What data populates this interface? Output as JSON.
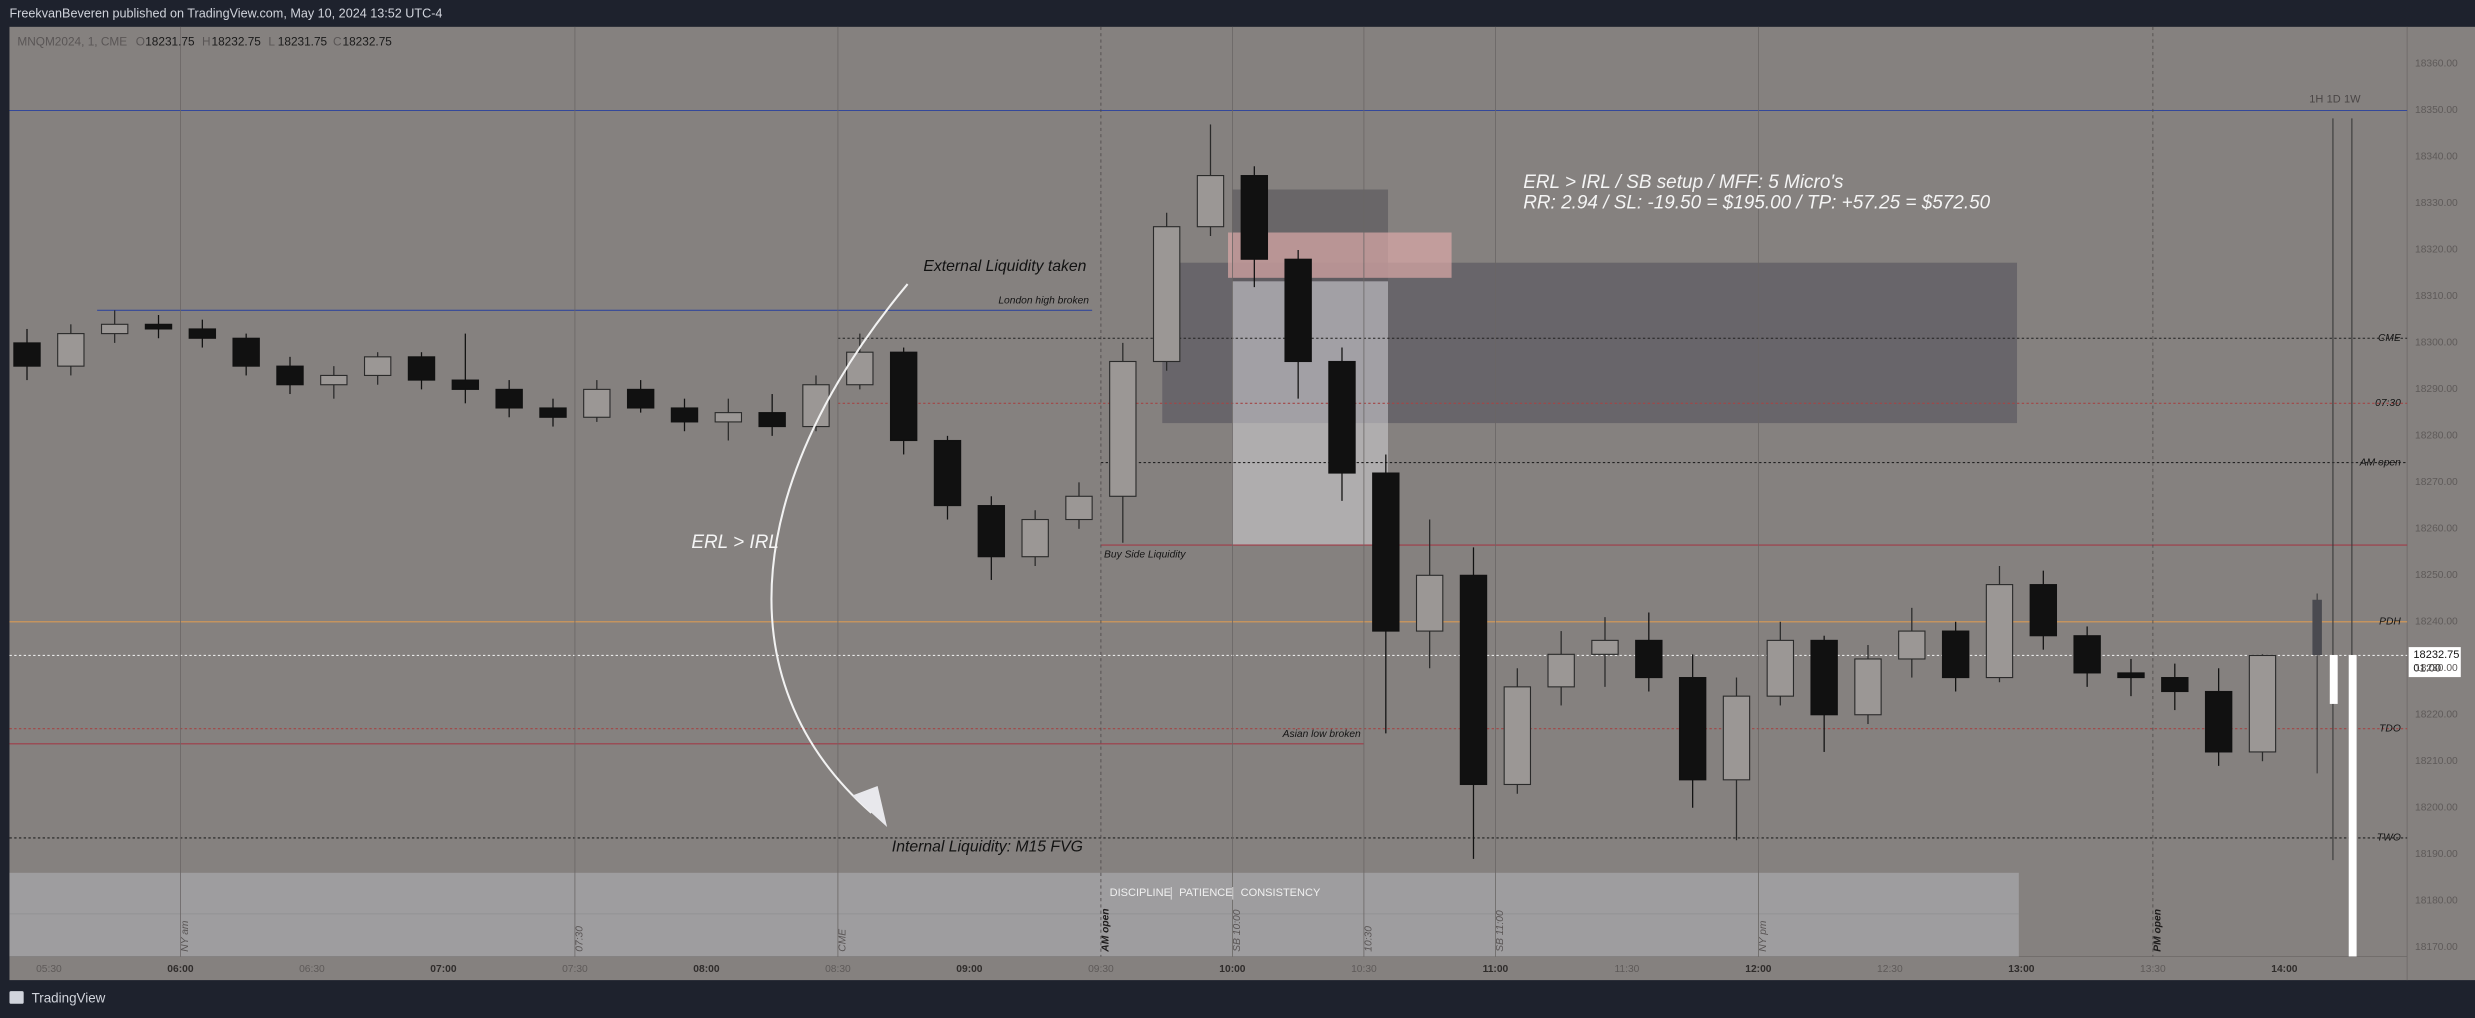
{
  "title_bar": "FreekvanBeveren published on TradingView.com, May 10, 2024 13:52 UTC-4",
  "footer": "TradingView",
  "chart_data": {
    "type": "candlestick",
    "legend": {
      "symbol": "MNQM2024, 1, CME",
      "labels": [
        "O",
        "H",
        "L",
        "C"
      ],
      "values": [
        18231.75,
        18232.75,
        18231.75,
        18232.75
      ]
    },
    "last_price": 18232.75,
    "countdown": "01:00",
    "timeframes": [
      "1H",
      "1D",
      "1W"
    ],
    "up_color": "#2a2a2a",
    "down_color": "#111111",
    "xlim": [
      321,
      868
    ],
    "ylim": [
      18168,
      18368
    ],
    "xticks": [
      {
        "value": 330,
        "label": "05:30"
      },
      {
        "value": 360,
        "label": "06:00"
      },
      {
        "value": 390,
        "label": "06:30"
      },
      {
        "value": 420,
        "label": "07:00"
      },
      {
        "value": 450,
        "label": "07:30"
      },
      {
        "value": 480,
        "label": "08:00"
      },
      {
        "value": 510,
        "label": "08:30"
      },
      {
        "value": 540,
        "label": "09:00"
      },
      {
        "value": 570,
        "label": "09:30"
      },
      {
        "value": 600,
        "label": "10:00"
      },
      {
        "value": 630,
        "label": "10:30"
      },
      {
        "value": 660,
        "label": "11:00"
      },
      {
        "value": 690,
        "label": "11:30"
      },
      {
        "value": 720,
        "label": "12:00"
      },
      {
        "value": 750,
        "label": "12:30"
      },
      {
        "value": 780,
        "label": "13:00"
      },
      {
        "value": 810,
        "label": "13:30"
      },
      {
        "value": 840,
        "label": "14:00"
      }
    ],
    "yticks": [
      {
        "value": 18170,
        "label": "18170.00"
      },
      {
        "value": 18180,
        "label": "18180.00"
      },
      {
        "value": 18190,
        "label": "18190.00"
      },
      {
        "value": 18200,
        "label": "18200.00"
      },
      {
        "value": 18210,
        "label": "18210.00"
      },
      {
        "value": 18220,
        "label": "18220.00"
      },
      {
        "value": 18230,
        "label": "18230.00"
      },
      {
        "value": 18240,
        "label": "18240.00"
      },
      {
        "value": 18250,
        "label": "18250.00"
      },
      {
        "value": 18260,
        "label": "18260.00"
      },
      {
        "value": 18270,
        "label": "18270.00"
      },
      {
        "value": 18280,
        "label": "18280.00"
      },
      {
        "value": 18290,
        "label": "18290.00"
      },
      {
        "value": 18300,
        "label": "18300.00"
      },
      {
        "value": 18310,
        "label": "18310.00"
      },
      {
        "value": 18320,
        "label": "18320.00"
      },
      {
        "value": 18330,
        "label": "18330.00"
      },
      {
        "value": 18340,
        "label": "18340.00"
      },
      {
        "value": 18350,
        "label": "18350.00"
      },
      {
        "value": 18360,
        "label": "18360.00"
      }
    ],
    "x": [
      320,
      330,
      340,
      350,
      360,
      370,
      380,
      390,
      400,
      410,
      420,
      430,
      440,
      450,
      460,
      470,
      480,
      490,
      500,
      510,
      520,
      530,
      540,
      550,
      560,
      570,
      580,
      590,
      600,
      610,
      620,
      630,
      640,
      650,
      660,
      670,
      680,
      690,
      700,
      710,
      720,
      730,
      740,
      750,
      760,
      770,
      780,
      790,
      800,
      810,
      820,
      830
    ],
    "open": [
      18300,
      18295,
      18302,
      18304,
      18303,
      18301,
      18295,
      18291,
      18293,
      18297,
      18292,
      18290,
      18286,
      18284,
      18290,
      18286,
      18283,
      18285,
      18282,
      18291,
      18298,
      18279,
      18265,
      18254,
      18262,
      18267,
      18296,
      18325,
      18336,
      18318,
      18296,
      18272,
      18238,
      18250,
      18205,
      18226,
      18233,
      18236,
      18228,
      18206,
      18224,
      18236,
      18220,
      18232,
      18238,
      18228,
      18248,
      18237,
      18229,
      18228,
      18225,
      18212
    ],
    "high": [
      18303,
      18304,
      18307,
      18306,
      18305,
      18302,
      18297,
      18295,
      18298,
      18298,
      18302,
      18292,
      18288,
      18292,
      18292,
      18288,
      18288,
      18289,
      18293,
      18302,
      18299,
      18280,
      18267,
      18264,
      18270,
      18300,
      18328,
      18347,
      18338,
      18320,
      18299,
      18276,
      18262,
      18256,
      18230,
      18238,
      18241,
      18242,
      18233,
      18228,
      18240,
      18237,
      18235,
      18243,
      18240,
      18252,
      18251,
      18239,
      18232,
      18231,
      18230,
      18233
    ],
    "low": [
      18292,
      18293,
      18300,
      18301,
      18299,
      18293,
      18289,
      18288,
      18291,
      18290,
      18287,
      18284,
      18282,
      18283,
      18285,
      18281,
      18279,
      18280,
      18281,
      18290,
      18276,
      18262,
      18249,
      18252,
      18260,
      18257,
      18294,
      18323,
      18312,
      18288,
      18266,
      18216,
      18230,
      18189,
      18203,
      18222,
      18226,
      18225,
      18200,
      18193,
      18222,
      18212,
      18218,
      18228,
      18225,
      18227,
      18234,
      18226,
      18224,
      18221,
      18209,
      18210
    ],
    "close": [
      18295,
      18302,
      18304,
      18303,
      18301,
      18295,
      18291,
      18293,
      18297,
      18292,
      18290,
      18286,
      18284,
      18290,
      18286,
      18283,
      18285,
      18282,
      18291,
      18298,
      18279,
      18265,
      18254,
      18262,
      18267,
      18296,
      18325,
      18336,
      18318,
      18296,
      18272,
      18238,
      18250,
      18205,
      18226,
      18233,
      18236,
      18228,
      18206,
      18224,
      18236,
      18220,
      18232,
      18238,
      18228,
      18248,
      18237,
      18229,
      18228,
      18225,
      18212,
      18232.75
    ],
    "sessions": [
      {
        "value": 360,
        "label": "NY am"
      },
      {
        "value": 450,
        "label": "07:30"
      },
      {
        "value": 510,
        "label": "CME"
      },
      {
        "value": 570,
        "label": "AM open"
      },
      {
        "value": 600,
        "label": "SB 10:00"
      },
      {
        "value": 630,
        "label": "10:30"
      },
      {
        "value": 660,
        "label": "SB 11:00"
      },
      {
        "value": 720,
        "label": "NY pm"
      },
      {
        "value": 810,
        "label": "PM open"
      }
    ],
    "levels": [
      {
        "price": 18350,
        "from": 321,
        "to": 868,
        "color": "#34489a",
        "dash": false
      },
      {
        "price": 18307,
        "from": 341,
        "to": 568,
        "color": "#34489a",
        "dash": false,
        "label": "London high broken",
        "label_at": "end-above"
      },
      {
        "price": 18301,
        "from": 510,
        "to": 868,
        "color": "#222222",
        "dash": true,
        "label": "CME",
        "label_at": "right"
      },
      {
        "price": 18287,
        "from": 510,
        "to": 868,
        "color": "#a34545",
        "dash": true,
        "label": "07:30",
        "label_at": "right"
      },
      {
        "price": 18274.25,
        "from": 570,
        "to": 868,
        "color": "#222222",
        "dash": true,
        "label": "AM open",
        "label_at": "right"
      },
      {
        "price": 18256.5,
        "from": 570,
        "to": 868,
        "color": "#a03c48",
        "dash": false,
        "label": "Buy Side Liquidity",
        "label_at": "start-below"
      },
      {
        "price": 18240,
        "from": 321,
        "to": 868,
        "color": "#d99a55",
        "dash": false,
        "label": "PDH",
        "label_at": "right"
      },
      {
        "price": 18232.75,
        "from": 321,
        "to": 868,
        "color": "#e8e8e8",
        "dash": true
      },
      {
        "price": 18217,
        "from": 321,
        "to": 868,
        "color": "#a34545",
        "dash": true,
        "label": "TDO",
        "label_at": "right"
      },
      {
        "price": 18213.75,
        "from": 321,
        "to": 630,
        "color": "#a03c48",
        "dash": false,
        "label": "Asian low broken",
        "label_at": "end-above"
      },
      {
        "price": 18193.5,
        "from": 321,
        "to": 868,
        "color": "#222222",
        "dash": true,
        "label": "TWO",
        "label_at": "right"
      }
    ],
    "zones": [
      {
        "from": 584,
        "to": 779,
        "top": 18317.25,
        "bottom": 18282.75,
        "color": "#55535c",
        "opacity": 0.6
      },
      {
        "from": 600,
        "to": 635.5,
        "top": 18333,
        "bottom": 18313.25,
        "color": "#5a585c",
        "opacity": 0.65
      },
      {
        "from": 599,
        "to": 650,
        "top": 18323.75,
        "bottom": 18314,
        "color": "#dcaaa8",
        "opacity": 0.7
      },
      {
        "from": 600,
        "to": 635.5,
        "top": 18313.25,
        "bottom": 18256.5,
        "color": "#d2d2d6",
        "opacity": 0.55
      }
    ],
    "annotations": [
      "External Liquidity taken",
      "ERL > IRL",
      "Internal Liquidity: M15 FVG",
      "ERL > IRL / SB setup / MFF: 5 Micro's",
      "RR: 2.94 / SL: -19.50 = $195.00 / TP: +57.25 = $572.50"
    ],
    "banner": [
      "DISCIPLINE",
      "PATIENCE",
      "CONSISTENCY"
    ]
  }
}
